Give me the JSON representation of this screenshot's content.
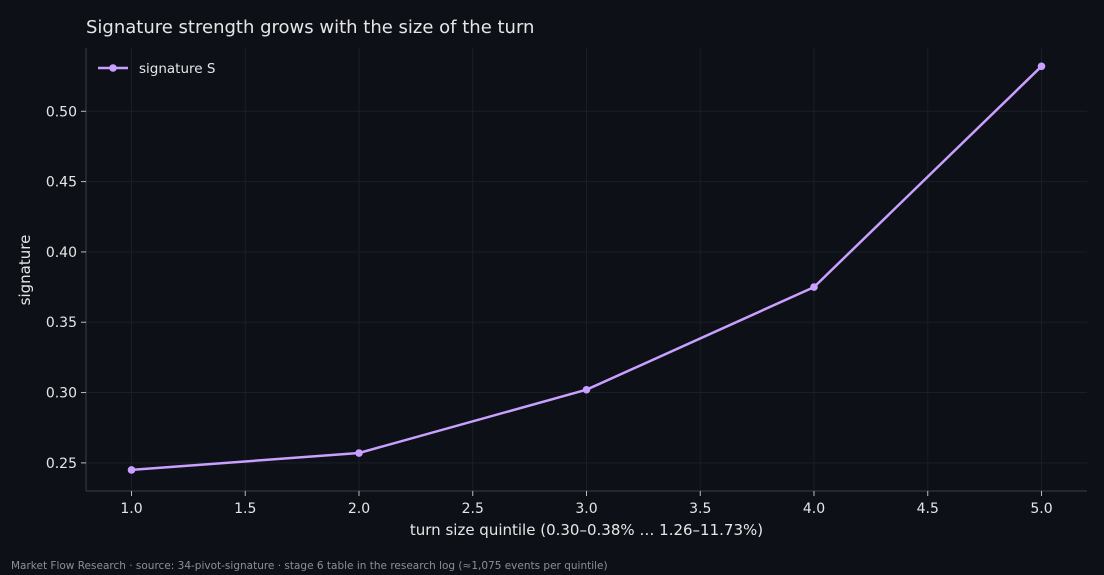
{
  "footer": "Market Flow Research · source: 34-pivot-signature · stage 6 table in the research log (≈1,075 events per quintile)",
  "chart_data": {
    "type": "line",
    "title": "Signature strength grows with the size of the turn",
    "xlabel": "turn size quintile (0.30–0.38% … 1.26–11.73%)",
    "ylabel": "signature",
    "xlim": [
      0.8,
      5.2
    ],
    "ylim": [
      0.23,
      0.545
    ],
    "xticks": [
      1.0,
      1.5,
      2.0,
      2.5,
      3.0,
      3.5,
      4.0,
      4.5,
      5.0
    ],
    "yticks": [
      0.25,
      0.3,
      0.35,
      0.4,
      0.45,
      0.5
    ],
    "grid": true,
    "legend_position": "top-left",
    "series": [
      {
        "name": "signature S",
        "color": "#c9a0ff",
        "x": [
          1,
          2,
          3,
          4,
          5
        ],
        "y": [
          0.245,
          0.257,
          0.302,
          0.375,
          0.532
        ]
      }
    ],
    "colors": {
      "background": "#0d1017",
      "grid": "#1a1e27",
      "axis": "#3a3e48",
      "text": "#e6e6e6"
    }
  }
}
